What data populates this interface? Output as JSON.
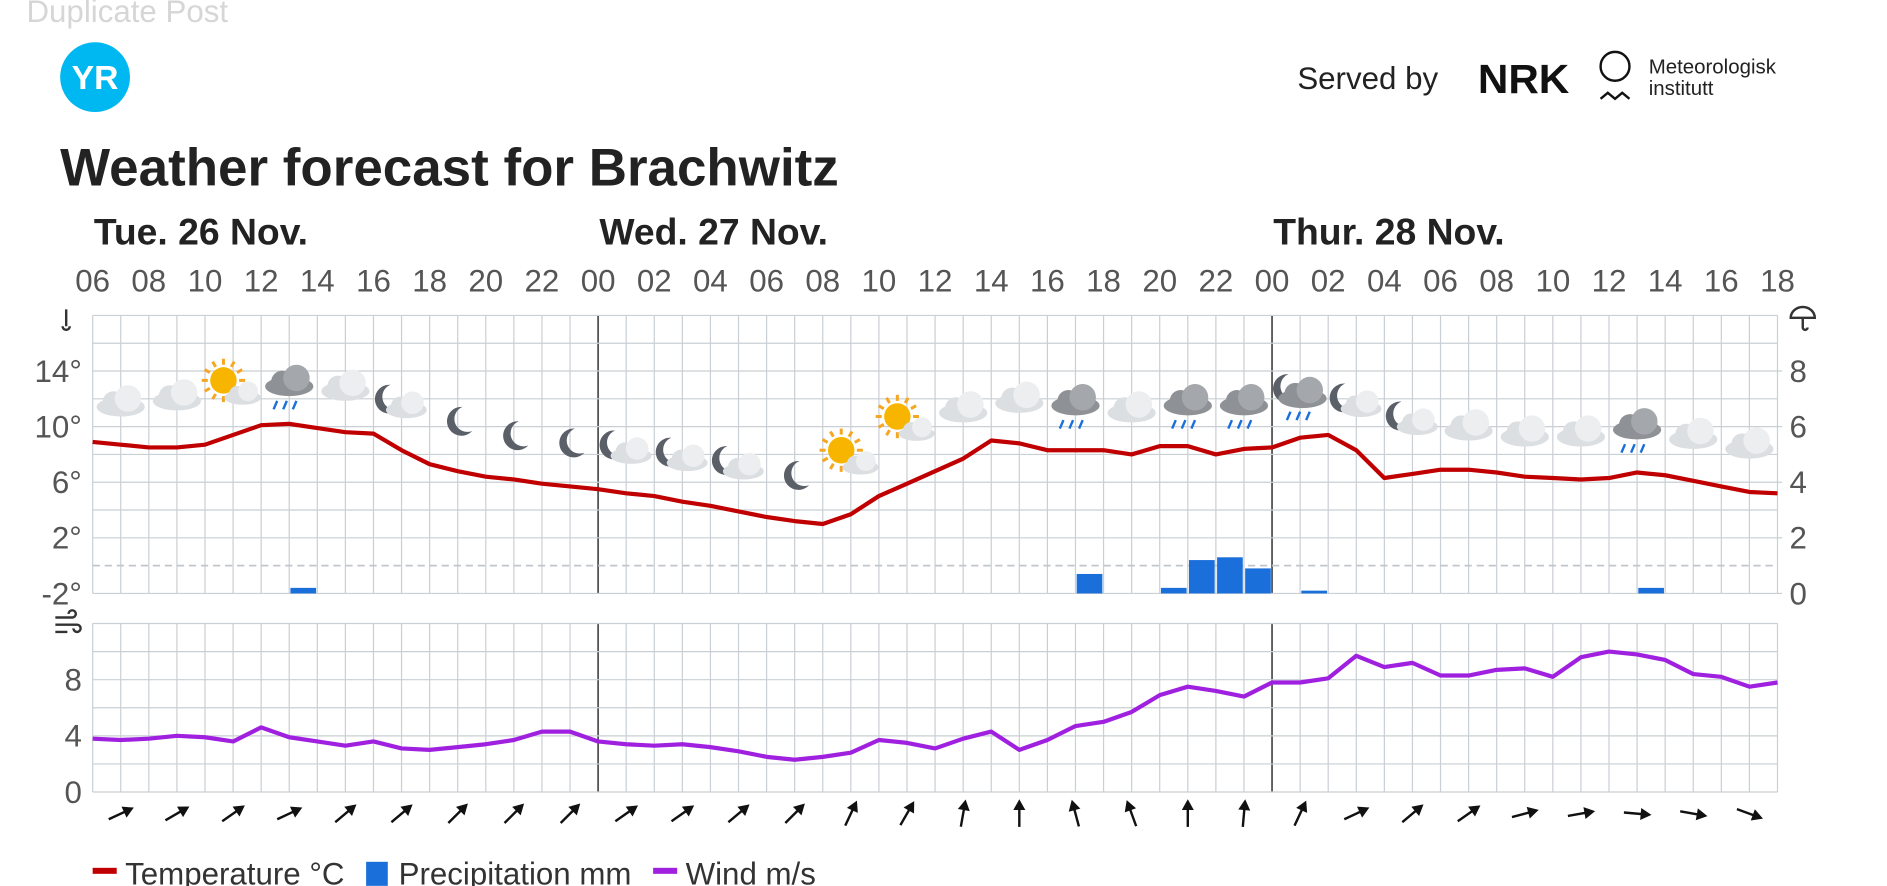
{
  "header": {
    "top_text": "Duplicate Post",
    "logo": "YR",
    "served_by": "Served by",
    "nrk": "NRK",
    "met": [
      "Meteorologisk",
      "institutt"
    ]
  },
  "title": "Weather forecast for Brachwitz",
  "chart_data": [
    {
      "type": "line",
      "days": [
        "Tue. 26 Nov.",
        "Wed. 27 Nov.",
        "Thur. 28 Nov."
      ],
      "categories": [
        "06",
        null,
        "08",
        null,
        "10",
        null,
        "12",
        null,
        "14",
        null,
        "16",
        null,
        "18",
        null,
        "20",
        null,
        "22",
        null,
        "00",
        null,
        "02",
        null,
        "04",
        null,
        "06",
        null,
        "08",
        null,
        "10",
        null,
        "12",
        null,
        "14",
        null,
        "16",
        null,
        "18",
        null,
        "20",
        null,
        "22",
        null,
        "00",
        null,
        "02",
        null,
        "04",
        null,
        "06",
        null,
        "08",
        null,
        "10",
        null,
        "12",
        null,
        "14",
        null,
        "16",
        null,
        "18"
      ],
      "series": [
        {
          "name": "Temperature °C",
          "color": "#c00000",
          "values": [
            8.9,
            8.7,
            8.5,
            8.5,
            8.7,
            9.4,
            10.1,
            10.2,
            9.9,
            9.6,
            9.5,
            8.3,
            7.3,
            6.8,
            6.4,
            6.2,
            5.9,
            5.7,
            5.5,
            5.2,
            5.0,
            4.6,
            4.3,
            3.9,
            3.5,
            3.2,
            3.0,
            3.7,
            5.0,
            5.9,
            6.8,
            7.7,
            9.0,
            8.8,
            8.3,
            8.3,
            8.3,
            8.0,
            8.6,
            8.6,
            8.0,
            8.4,
            8.5,
            9.2,
            9.4,
            8.3,
            6.3,
            6.6,
            6.9,
            6.9,
            6.7,
            6.4,
            6.3,
            6.2,
            6.3,
            6.7,
            6.5,
            6.1,
            5.7,
            5.3,
            5.2
          ]
        },
        {
          "name": "Precipitation mm",
          "color": "#1a6fdb",
          "type": "bar",
          "axis": "y2",
          "values": [
            0,
            0,
            0,
            0,
            0,
            0,
            0,
            0.2,
            0,
            0,
            0,
            0,
            0,
            0,
            0,
            0,
            0,
            0,
            0,
            0,
            0,
            0,
            0,
            0,
            0,
            0,
            0,
            0,
            0,
            0,
            0,
            0,
            0,
            0,
            0,
            0.7,
            0,
            0,
            0.2,
            1.2,
            1.3,
            0.9,
            0,
            0.1,
            0,
            0,
            0,
            0,
            0,
            0,
            0,
            0,
            0,
            0,
            0,
            0.2,
            0,
            0,
            0,
            0,
            0
          ]
        }
      ],
      "ylim": [
        -2,
        18
      ],
      "yticks": [
        {
          "value": -2,
          "label": "-2°"
        },
        {
          "value": 2,
          "label": "2°"
        },
        {
          "value": 6,
          "label": "6°"
        },
        {
          "value": 10,
          "label": "10°"
        },
        {
          "value": 14,
          "label": "14°"
        }
      ],
      "y2lim": [
        0,
        10
      ],
      "y2ticks": [
        0,
        2,
        4,
        6,
        8
      ],
      "grid": true
    },
    {
      "type": "line",
      "series": [
        {
          "name": "Wind m/s",
          "color": "#a020e0",
          "values": [
            3.8,
            3.7,
            3.8,
            4.0,
            3.9,
            3.6,
            4.6,
            3.9,
            3.6,
            3.3,
            3.6,
            3.1,
            3.0,
            3.2,
            3.4,
            3.7,
            4.3,
            4.3,
            3.6,
            3.4,
            3.3,
            3.4,
            3.2,
            2.9,
            2.5,
            2.3,
            2.5,
            2.8,
            3.7,
            3.5,
            3.1,
            3.8,
            4.3,
            3.0,
            3.7,
            4.7,
            5.0,
            5.7,
            6.9,
            7.5,
            7.2,
            6.8,
            7.8,
            7.8,
            8.1,
            9.7,
            8.9,
            9.2,
            8.3,
            8.3,
            8.7,
            8.8,
            8.2,
            9.6,
            10.0,
            9.8,
            9.4,
            8.4,
            8.2,
            7.5,
            7.8
          ]
        }
      ],
      "arrow_angles": [
        65,
        60,
        55,
        65,
        50,
        50,
        45,
        45,
        45,
        55,
        55,
        50,
        45,
        25,
        30,
        10,
        0,
        -15,
        -20,
        0,
        5,
        25,
        65,
        50,
        55,
        75,
        80,
        95,
        100,
        110
      ],
      "ylim": [
        0,
        12
      ],
      "yticks": [
        0,
        4,
        8
      ],
      "grid": true
    }
  ]
}
